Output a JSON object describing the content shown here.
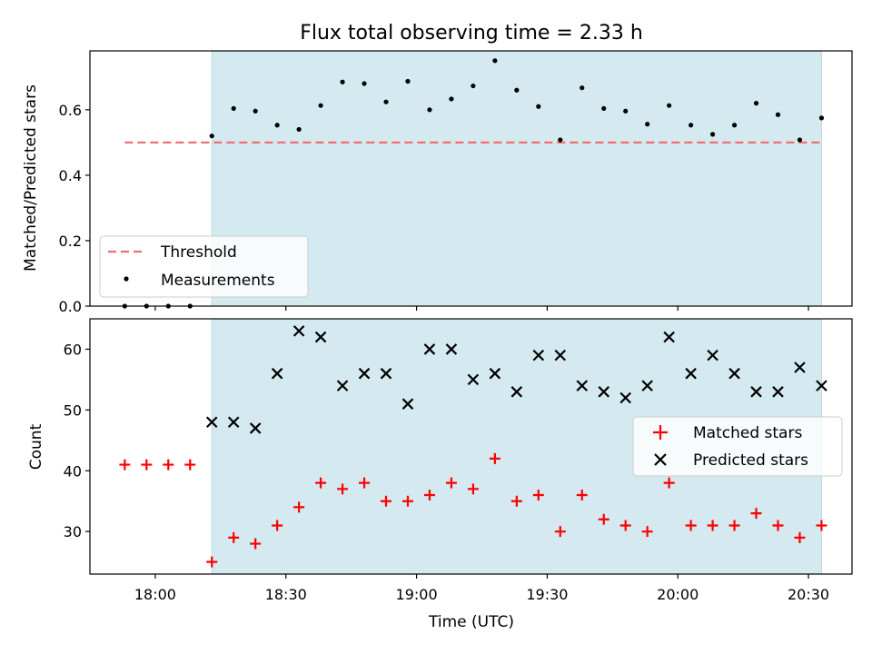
{
  "chart_data": [
    {
      "type": "scatter",
      "title": "Flux total observing time = 2.33 h",
      "xlabel": "",
      "ylabel": "Matched/Predicted stars",
      "ylim": [
        0.0,
        0.78
      ],
      "yticks": [
        "0.0",
        "0.2",
        "0.4",
        "0.6"
      ],
      "shaded_region_x": [
        "18:13",
        "20:33"
      ],
      "legend": {
        "placement": "lower-left",
        "entries": [
          "Threshold",
          "Measurements"
        ]
      },
      "series": [
        {
          "name": "Threshold",
          "style": "dashed-line",
          "color": "#f07070",
          "x": [
            "17:53",
            "20:33"
          ],
          "y": [
            0.5,
            0.5
          ]
        },
        {
          "name": "Measurements",
          "style": "dot",
          "color": "#000000",
          "x": [
            "17:53",
            "17:58",
            "18:03",
            "18:08",
            "18:13",
            "18:18",
            "18:23",
            "18:28",
            "18:33",
            "18:38",
            "18:43",
            "18:48",
            "18:53",
            "18:58",
            "19:03",
            "19:08",
            "19:13",
            "19:18",
            "19:23",
            "19:28",
            "19:33",
            "19:38",
            "19:43",
            "19:48",
            "19:53",
            "19:58",
            "20:03",
            "20:08",
            "20:13",
            "20:18",
            "20:23",
            "20:28",
            "20:33"
          ],
          "y": [
            0.0,
            0.0,
            0.0,
            0.0,
            0.52,
            0.604,
            0.596,
            0.553,
            0.54,
            0.613,
            0.685,
            0.68,
            0.624,
            0.687,
            0.6,
            0.633,
            0.673,
            0.75,
            0.66,
            0.61,
            0.508,
            0.667,
            0.604,
            0.596,
            0.556,
            0.613,
            0.553,
            0.525,
            0.553,
            0.62,
            0.585,
            0.508,
            0.575
          ]
        }
      ]
    },
    {
      "type": "scatter",
      "title": "",
      "xlabel": "Time (UTC)",
      "ylabel": "Count",
      "ylim": [
        23,
        65
      ],
      "yticks": [
        "30",
        "40",
        "50",
        "60"
      ],
      "xticks": [
        "18:00",
        "18:30",
        "19:00",
        "19:30",
        "20:00",
        "20:30"
      ],
      "shaded_region_x": [
        "18:13",
        "20:33"
      ],
      "legend": {
        "placement": "center-right",
        "entries": [
          "Matched stars",
          "Predicted stars"
        ]
      },
      "series": [
        {
          "name": "Matched stars",
          "marker": "+",
          "color": "#ff0000",
          "x": [
            "17:53",
            "17:58",
            "18:03",
            "18:08",
            "18:13",
            "18:18",
            "18:23",
            "18:28",
            "18:33",
            "18:38",
            "18:43",
            "18:48",
            "18:53",
            "18:58",
            "19:03",
            "19:08",
            "19:13",
            "19:18",
            "19:23",
            "19:28",
            "19:33",
            "19:38",
            "19:43",
            "19:48",
            "19:53",
            "19:58",
            "20:03",
            "20:08",
            "20:13",
            "20:18",
            "20:23",
            "20:28",
            "20:33"
          ],
          "y": [
            41,
            41,
            41,
            41,
            25,
            29,
            28,
            31,
            34,
            38,
            37,
            38,
            35,
            35,
            36,
            38,
            37,
            42,
            35,
            36,
            30,
            36,
            32,
            31,
            30,
            38,
            31,
            31,
            31,
            33,
            31,
            29,
            31
          ]
        },
        {
          "name": "Predicted stars",
          "marker": "x",
          "color": "#000000",
          "x": [
            "18:13",
            "18:18",
            "18:23",
            "18:28",
            "18:33",
            "18:38",
            "18:43",
            "18:48",
            "18:53",
            "18:58",
            "19:03",
            "19:08",
            "19:13",
            "19:18",
            "19:23",
            "19:28",
            "19:33",
            "19:38",
            "19:43",
            "19:48",
            "19:53",
            "19:58",
            "20:03",
            "20:08",
            "20:13",
            "20:18",
            "20:23",
            "20:28",
            "20:33"
          ],
          "y": [
            48,
            48,
            47,
            56,
            63,
            62,
            54,
            56,
            56,
            51,
            60,
            60,
            55,
            56,
            53,
            59,
            59,
            54,
            53,
            52,
            54,
            62,
            56,
            59,
            56,
            53,
            53,
            57,
            54
          ]
        }
      ]
    }
  ],
  "colors": {
    "shade": "#d4eaf0",
    "shade_edge": "#b8dbe3",
    "threshold": "#f07070",
    "matched": "#ff0000",
    "predicted": "#000000"
  }
}
